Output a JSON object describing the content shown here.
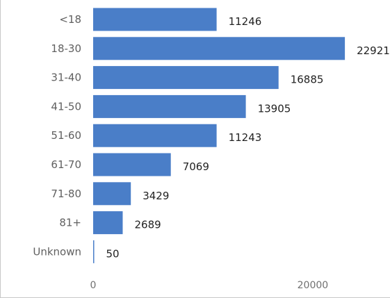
{
  "chart_data": {
    "type": "bar",
    "orientation": "horizontal",
    "categories": [
      "<18",
      "18-30",
      "31-40",
      "41-50",
      "51-60",
      "61-70",
      "71-80",
      "81+",
      "Unknown"
    ],
    "values": [
      11246,
      22921,
      16885,
      13905,
      11243,
      7069,
      3429,
      2689,
      50
    ],
    "data_labels": [
      "11246",
      "22921",
      "16885",
      "13905",
      "11243",
      "7069",
      "3429",
      "2689",
      "50"
    ],
    "x_ticks": [
      {
        "value": 0,
        "label": "0"
      },
      {
        "value": 20000,
        "label": "20000"
      }
    ],
    "xlim": [
      0,
      24500
    ],
    "bar_color": "#4a7ec8",
    "grid": false,
    "legend": "none"
  }
}
